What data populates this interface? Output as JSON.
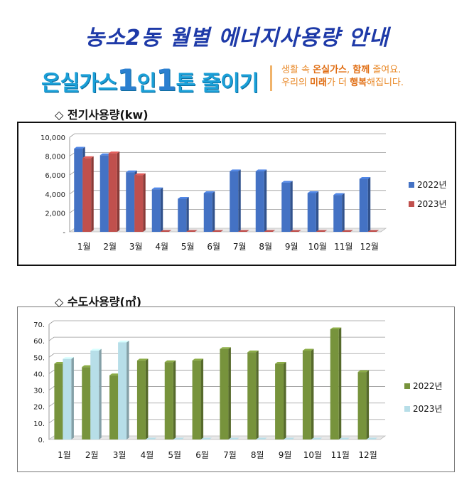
{
  "page": {
    "title": "농소2동 월별 에너지사용량 안내",
    "campaign": {
      "main_pre": "온실가스",
      "num1": "1",
      "mid": "인",
      "num2": "1",
      "main_post": "톤 줄이기",
      "sub_line1_a": "생활 속 ",
      "sub_line1_b": "온실가스",
      "sub_line1_c": ", ",
      "sub_line1_d": "함께",
      "sub_line1_e": " 줄여요.",
      "sub_line2_a": "우리의 ",
      "sub_line2_b": "미래",
      "sub_line2_c": "가 더 ",
      "sub_line2_d": "행복",
      "sub_line2_e": "해집니다."
    },
    "electric_heading": "◇ 전기사용량(kw)",
    "water_heading": "◇ 수도사용량(㎥)"
  },
  "chart_data": [
    {
      "type": "bar",
      "categories": [
        "1월",
        "2월",
        "3월",
        "4월",
        "5월",
        "6월",
        "7월",
        "8월",
        "9월",
        "10월",
        "11월",
        "12월"
      ],
      "series": [
        {
          "name": "2022년",
          "color": "#4472c4",
          "values": [
            8800,
            8100,
            6300,
            4500,
            3500,
            4100,
            6400,
            6400,
            5200,
            4100,
            3900,
            5600
          ]
        },
        {
          "name": "2023년",
          "color": "#c0504d",
          "values": [
            7800,
            8300,
            6000,
            0,
            0,
            0,
            0,
            0,
            0,
            0,
            0,
            0
          ]
        }
      ],
      "yticks": [
        "-",
        "2,000",
        "4,000",
        "6,000",
        "8,000",
        "10,000"
      ],
      "ylim": [
        0,
        10000
      ],
      "legend": "right"
    },
    {
      "type": "bar",
      "categories": [
        "1월",
        "2월",
        "3월",
        "4월",
        "5월",
        "6월",
        "7월",
        "8월",
        "9월",
        "10월",
        "11월",
        "12월"
      ],
      "series": [
        {
          "name": "2022년",
          "color": "#77933c",
          "values": [
            46,
            44,
            39,
            48,
            47,
            48,
            55,
            53,
            46,
            54,
            67,
            41
          ]
        },
        {
          "name": "2023년",
          "color": "#b7dee8",
          "values": [
            49,
            54,
            59,
            0,
            0,
            0,
            0,
            0,
            0,
            0,
            0,
            0
          ]
        }
      ],
      "yticks": [
        "0.",
        "10.",
        "20.",
        "30.",
        "40.",
        "50.",
        "60.",
        "70."
      ],
      "ylim": [
        0,
        70
      ],
      "legend": "right"
    }
  ]
}
